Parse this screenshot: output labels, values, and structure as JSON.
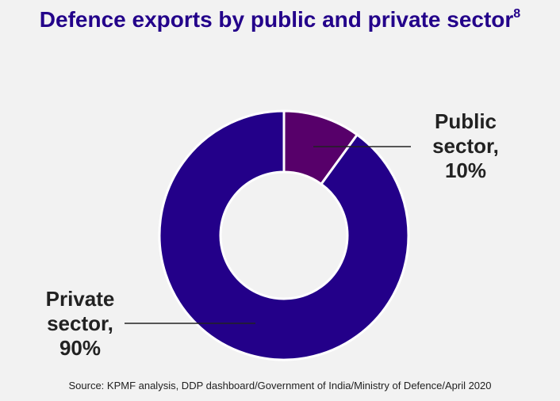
{
  "title": "Defence exports by public and private sector",
  "title_superscript": "8",
  "source": "Source: KPMF analysis, DDP dashboard/Government of India/Ministry of Defence/April 2020",
  "colors": {
    "public": "#57006a",
    "private": "#230089",
    "title": "#23008a"
  },
  "labels": {
    "public": {
      "line1": "Public",
      "line2": "sector,",
      "line3": "10%"
    },
    "private": {
      "line1": "Private",
      "line2": "sector,",
      "line3": "90%"
    }
  },
  "chart_data": {
    "type": "pie",
    "donut": true,
    "title": "Defence exports by public and private sector",
    "categories": [
      "Public sector",
      "Private sector"
    ],
    "values": [
      10,
      90
    ],
    "unit": "%"
  }
}
